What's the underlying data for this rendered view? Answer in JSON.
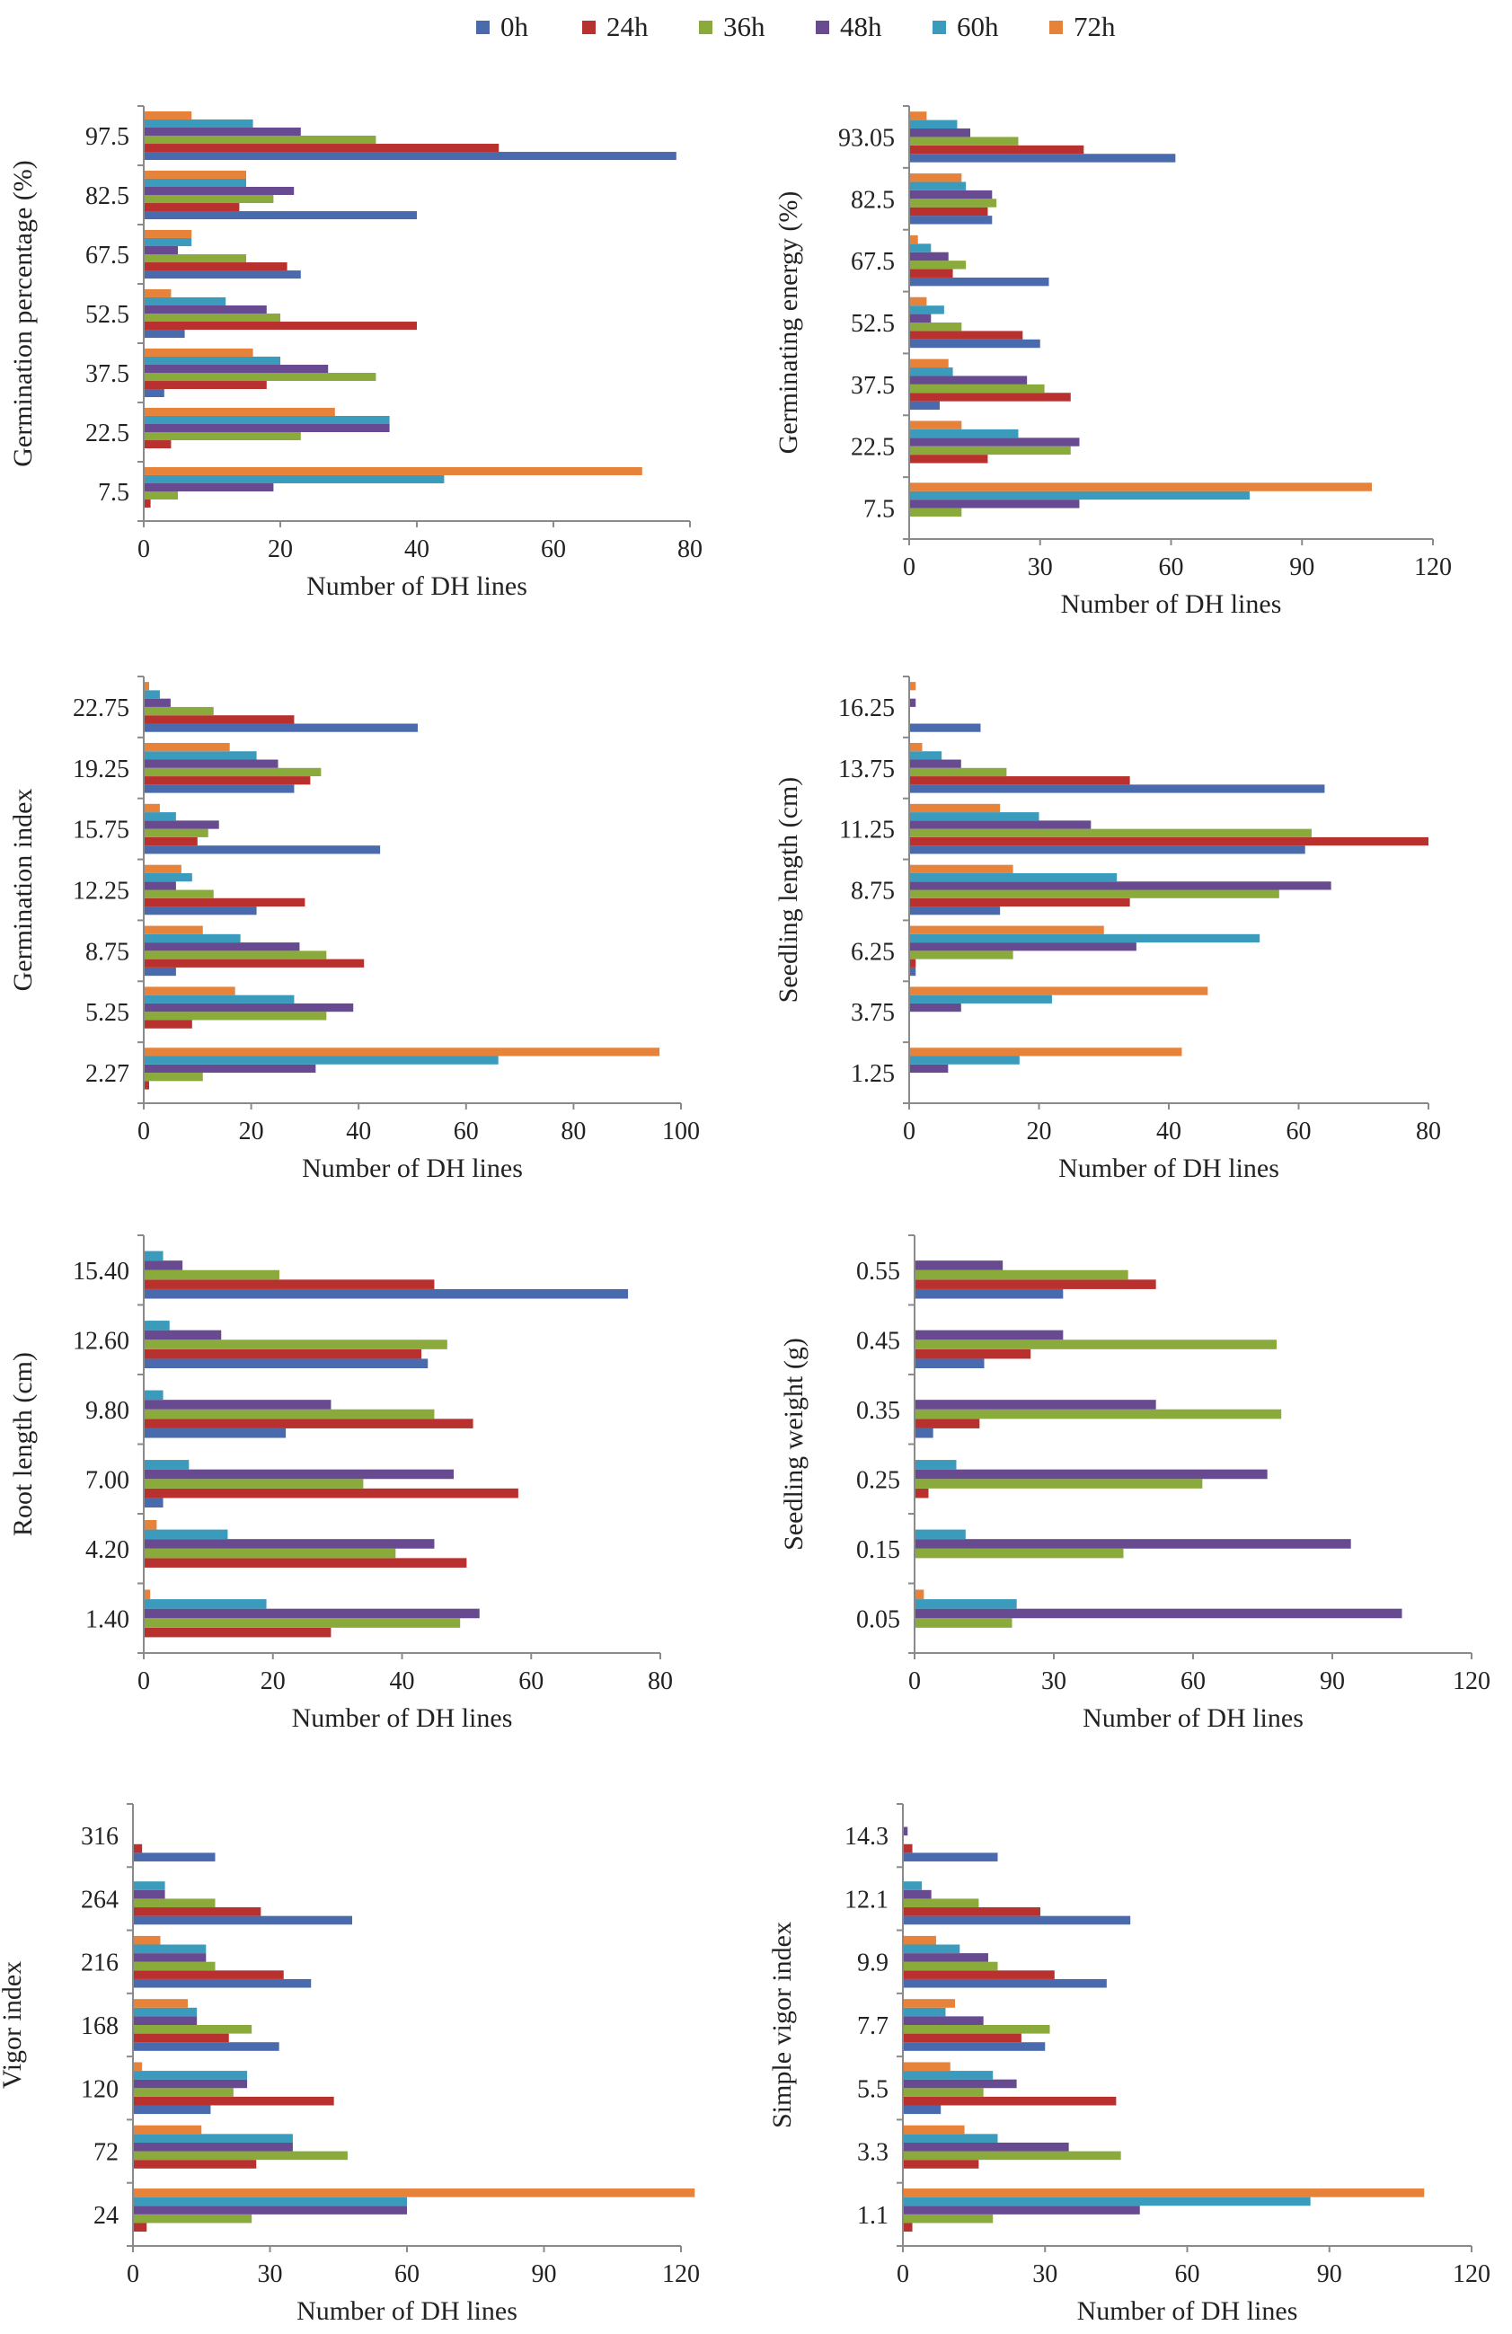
{
  "legend": [
    {
      "name": "0h",
      "color": "#4a6aae"
    },
    {
      "name": "24h",
      "color": "#b9312f"
    },
    {
      "name": "36h",
      "color": "#8aab3c"
    },
    {
      "name": "48h",
      "color": "#684a90"
    },
    {
      "name": "60h",
      "color": "#3b9bbc"
    },
    {
      "name": "72h",
      "color": "#e6823a"
    }
  ],
  "chart_data": [
    {
      "type": "bar",
      "orientation": "horizontal",
      "ylabel": "Germination percentage (%)",
      "xlabel": "Number of DH lines",
      "categories": [
        "7.5",
        "22.5",
        "37.5",
        "52.5",
        "67.5",
        "82.5",
        "97.5"
      ],
      "xlim": [
        0,
        80
      ],
      "xticks": [
        "0",
        "20",
        "40",
        "60",
        "80"
      ],
      "series": [
        {
          "name": "0h",
          "values": [
            0,
            0,
            3,
            6,
            23,
            40,
            78
          ]
        },
        {
          "name": "24h",
          "values": [
            1,
            4,
            18,
            40,
            21,
            14,
            52
          ]
        },
        {
          "name": "36h",
          "values": [
            5,
            23,
            34,
            20,
            15,
            19,
            34
          ]
        },
        {
          "name": "48h",
          "values": [
            19,
            36,
            27,
            18,
            5,
            22,
            23
          ]
        },
        {
          "name": "60h",
          "values": [
            44,
            36,
            20,
            12,
            7,
            15,
            16
          ]
        },
        {
          "name": "72h",
          "values": [
            73,
            28,
            16,
            4,
            7,
            15,
            7
          ]
        }
      ]
    },
    {
      "type": "bar",
      "orientation": "horizontal",
      "ylabel": "Germinating energy (%)",
      "xlabel": "Number of DH lines",
      "categories": [
        "7.5",
        "22.5",
        "37.5",
        "52.5",
        "67.5",
        "82.5",
        "93.05"
      ],
      "xlim": [
        0,
        120
      ],
      "xticks": [
        "0",
        "30",
        "60",
        "90",
        "120"
      ],
      "series": [
        {
          "name": "0h",
          "values": [
            0,
            0,
            7,
            30,
            32,
            19,
            61
          ]
        },
        {
          "name": "24h",
          "values": [
            0,
            18,
            37,
            26,
            10,
            18,
            40
          ]
        },
        {
          "name": "36h",
          "values": [
            12,
            37,
            31,
            12,
            13,
            20,
            25
          ]
        },
        {
          "name": "48h",
          "values": [
            39,
            39,
            27,
            5,
            9,
            19,
            14
          ]
        },
        {
          "name": "60h",
          "values": [
            78,
            25,
            10,
            8,
            5,
            13,
            11
          ]
        },
        {
          "name": "72h",
          "values": [
            106,
            12,
            9,
            4,
            2,
            12,
            4
          ]
        }
      ]
    },
    {
      "type": "bar",
      "orientation": "horizontal",
      "ylabel": "Germination index",
      "xlabel": "Number of DH lines",
      "categories": [
        "2.27",
        "5.25",
        "8.75",
        "12.25",
        "15.75",
        "19.25",
        "22.75"
      ],
      "xlim": [
        0,
        100
      ],
      "xticks": [
        "0",
        "20",
        "40",
        "60",
        "80",
        "100"
      ],
      "series": [
        {
          "name": "0h",
          "values": [
            0,
            0,
            6,
            21,
            44,
            28,
            51
          ]
        },
        {
          "name": "24h",
          "values": [
            1,
            9,
            41,
            30,
            10,
            31,
            28
          ]
        },
        {
          "name": "36h",
          "values": [
            11,
            34,
            34,
            13,
            12,
            33,
            13
          ]
        },
        {
          "name": "48h",
          "values": [
            32,
            39,
            29,
            6,
            14,
            25,
            5
          ]
        },
        {
          "name": "60h",
          "values": [
            66,
            28,
            18,
            9,
            6,
            21,
            3
          ]
        },
        {
          "name": "72h",
          "values": [
            96,
            17,
            11,
            7,
            3,
            16,
            1
          ]
        }
      ]
    },
    {
      "type": "bar",
      "orientation": "horizontal",
      "ylabel": "Seedling length (cm)",
      "xlabel": "Number of DH lines",
      "categories": [
        "1.25",
        "3.75",
        "6.25",
        "8.75",
        "11.25",
        "13.75",
        "16.25"
      ],
      "xlim": [
        0,
        80
      ],
      "xticks": [
        "0",
        "20",
        "40",
        "60",
        "80"
      ],
      "series": [
        {
          "name": "0h",
          "values": [
            0,
            0,
            1,
            14,
            61,
            64,
            11
          ]
        },
        {
          "name": "24h",
          "values": [
            0,
            0,
            1,
            34,
            80,
            34,
            0
          ]
        },
        {
          "name": "36h",
          "values": [
            0,
            0,
            16,
            57,
            62,
            15,
            0
          ]
        },
        {
          "name": "48h",
          "values": [
            6,
            8,
            35,
            65,
            28,
            8,
            1
          ]
        },
        {
          "name": "60h",
          "values": [
            17,
            22,
            54,
            32,
            20,
            5,
            0
          ]
        },
        {
          "name": "72h",
          "values": [
            42,
            46,
            30,
            16,
            14,
            2,
            1
          ]
        }
      ]
    },
    {
      "type": "bar",
      "orientation": "horizontal",
      "ylabel": "Root length (cm)",
      "xlabel": "Number of DH lines",
      "categories": [
        "1.40",
        "4.20",
        "7.00",
        "9.80",
        "12.60",
        "15.40"
      ],
      "xlim": [
        0,
        80
      ],
      "xticks": [
        "0",
        "20",
        "40",
        "60",
        "80"
      ],
      "series": [
        {
          "name": "0h",
          "values": [
            0,
            0,
            3,
            22,
            44,
            75
          ]
        },
        {
          "name": "24h",
          "values": [
            29,
            50,
            58,
            51,
            43,
            45
          ]
        },
        {
          "name": "36h",
          "values": [
            49,
            39,
            34,
            45,
            47,
            21
          ]
        },
        {
          "name": "48h",
          "values": [
            52,
            45,
            48,
            29,
            12,
            6
          ]
        },
        {
          "name": "60h",
          "values": [
            19,
            13,
            7,
            3,
            4,
            3
          ]
        },
        {
          "name": "72h",
          "values": [
            1,
            2,
            0,
            0,
            0,
            0
          ]
        }
      ]
    },
    {
      "type": "bar",
      "orientation": "horizontal",
      "ylabel": "Seedling weight (g)",
      "xlabel": "Number of DH lines",
      "categories": [
        "0.05",
        "0.15",
        "0.25",
        "0.35",
        "0.45",
        "0.55"
      ],
      "xlim": [
        0,
        120
      ],
      "xticks": [
        "0",
        "30",
        "60",
        "90",
        "120"
      ],
      "series": [
        {
          "name": "0h",
          "values": [
            0,
            0,
            0,
            4,
            15,
            32
          ]
        },
        {
          "name": "24h",
          "values": [
            0,
            0,
            3,
            14,
            25,
            52
          ]
        },
        {
          "name": "36h",
          "values": [
            21,
            45,
            62,
            79,
            78,
            46
          ]
        },
        {
          "name": "48h",
          "values": [
            105,
            94,
            76,
            52,
            32,
            19
          ]
        },
        {
          "name": "60h",
          "values": [
            22,
            11,
            9,
            0,
            0,
            0
          ]
        },
        {
          "name": "72h",
          "values": [
            2,
            0,
            0,
            0,
            0,
            0
          ]
        }
      ]
    },
    {
      "type": "bar",
      "orientation": "horizontal",
      "ylabel": "Vigor index",
      "xlabel": "Number of DH lines",
      "categories": [
        "24",
        "72",
        "120",
        "168",
        "216",
        "264",
        "316"
      ],
      "xlim": [
        0,
        120
      ],
      "xticks": [
        "0",
        "30",
        "60",
        "90",
        "120"
      ],
      "series": [
        {
          "name": "0h",
          "values": [
            0,
            0,
            17,
            32,
            39,
            48,
            18
          ]
        },
        {
          "name": "24h",
          "values": [
            3,
            27,
            44,
            21,
            33,
            28,
            2
          ]
        },
        {
          "name": "36h",
          "values": [
            26,
            47,
            22,
            26,
            18,
            18,
            0
          ]
        },
        {
          "name": "48h",
          "values": [
            60,
            35,
            25,
            14,
            16,
            7,
            0
          ]
        },
        {
          "name": "60h",
          "values": [
            60,
            35,
            25,
            14,
            16,
            7,
            0
          ]
        },
        {
          "name": "72h",
          "values": [
            123,
            15,
            2,
            12,
            6,
            0,
            0
          ]
        }
      ]
    },
    {
      "type": "bar",
      "orientation": "horizontal",
      "ylabel": "Simple vigor index",
      "xlabel": "Number of DH lines",
      "categories": [
        "1.1",
        "3.3",
        "5.5",
        "7.7",
        "9.9",
        "12.1",
        "14.3"
      ],
      "xlim": [
        0,
        120
      ],
      "xticks": [
        "0",
        "30",
        "60",
        "90",
        "120"
      ],
      "series": [
        {
          "name": "0h",
          "values": [
            0,
            0,
            8,
            30,
            43,
            48,
            20
          ]
        },
        {
          "name": "24h",
          "values": [
            2,
            16,
            45,
            25,
            32,
            29,
            2
          ]
        },
        {
          "name": "36h",
          "values": [
            19,
            46,
            17,
            31,
            20,
            16,
            0
          ]
        },
        {
          "name": "48h",
          "values": [
            50,
            35,
            24,
            17,
            18,
            6,
            1
          ]
        },
        {
          "name": "60h",
          "values": [
            86,
            20,
            19,
            9,
            12,
            4,
            0
          ]
        },
        {
          "name": "72h",
          "values": [
            110,
            13,
            10,
            11,
            7,
            0,
            0
          ]
        }
      ]
    }
  ]
}
